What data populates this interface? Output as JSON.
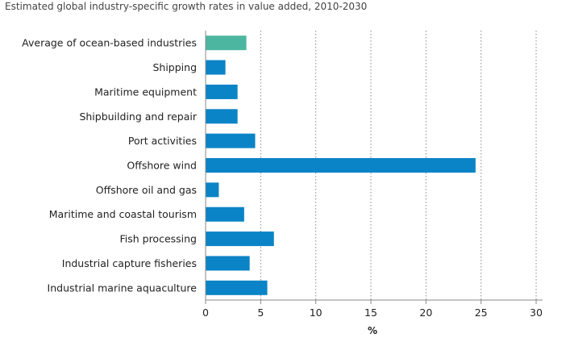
{
  "chart_data": {
    "type": "bar",
    "orientation": "horizontal",
    "title": "Estimated global industry-specific growth rates in value added, 2010-2030",
    "categories": [
      "Average of ocean-based industries",
      "Shipping",
      "Maritime equipment",
      "Shipbuilding and repair",
      "Port activities",
      "Offshore wind",
      "Offshore oil and gas",
      "Maritime and coastal tourism",
      "Fish processing",
      "Industrial capture fisheries",
      "Industrial marine aquaculture"
    ],
    "values": [
      3.7,
      1.8,
      2.9,
      2.9,
      4.5,
      24.5,
      1.2,
      3.5,
      6.2,
      4.0,
      5.6
    ],
    "highlight_index": 0,
    "colors": {
      "bar": "#0a84c6",
      "highlight": "#4db6a1",
      "grid": "#888888",
      "axis": "#888888"
    },
    "xlabel": "%",
    "ylabel": "",
    "xlim": [
      0,
      30
    ],
    "xticks": [
      0,
      5,
      10,
      15,
      20,
      25,
      30
    ],
    "grid": true
  }
}
